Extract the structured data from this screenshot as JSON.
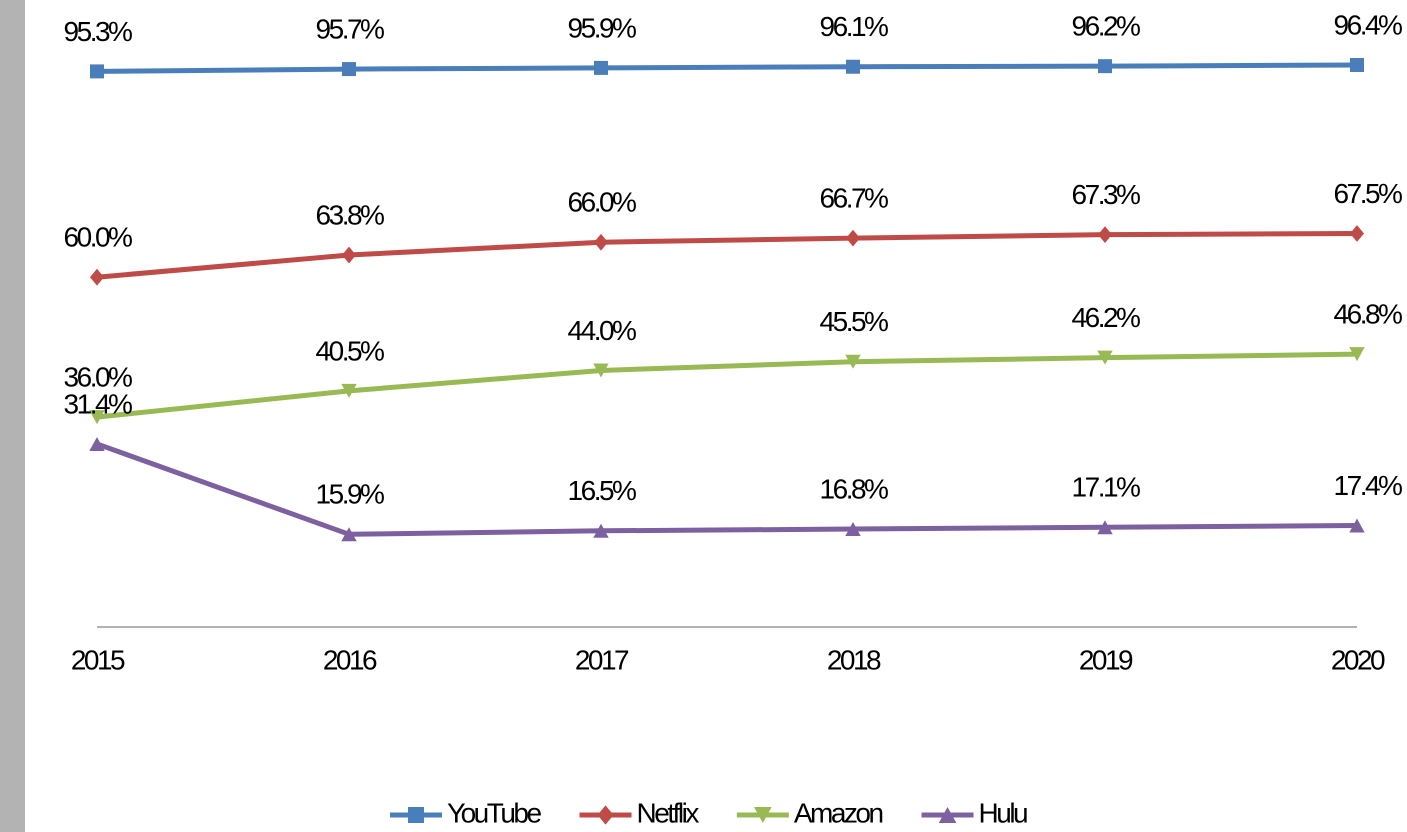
{
  "chart_data": {
    "type": "line",
    "categories": [
      "2015",
      "2016",
      "2017",
      "2018",
      "2019",
      "2020"
    ],
    "ylim": [
      0,
      100
    ],
    "legend": "bottom",
    "series": [
      {
        "name": "YouTube",
        "color": "#4a7ebb",
        "marker": "square",
        "values": [
          95.3,
          95.7,
          95.9,
          96.1,
          96.2,
          96.4
        ],
        "value_labels": [
          "95.3%",
          "95.7%",
          "95.9%",
          "96.1%",
          "96.2%",
          "96.4%"
        ]
      },
      {
        "name": "Netflix",
        "color": "#be4b48",
        "marker": "diamond",
        "values": [
          60.0,
          63.8,
          66.0,
          66.7,
          67.3,
          67.5
        ],
        "value_labels": [
          "60.0%",
          "63.8%",
          "66.0%",
          "66.7%",
          "67.3%",
          "67.5%"
        ]
      },
      {
        "name": "Amazon",
        "color": "#98b954",
        "marker": "triangle-down",
        "values": [
          36.0,
          40.5,
          44.0,
          45.5,
          46.2,
          46.8
        ],
        "value_labels": [
          "36.0%",
          "40.5%",
          "44.0%",
          "45.5%",
          "46.2%",
          "46.8%"
        ]
      },
      {
        "name": "Hulu",
        "color": "#7d60a0",
        "marker": "triangle-up",
        "values": [
          31.4,
          15.9,
          16.5,
          16.8,
          17.1,
          17.4
        ],
        "value_labels": [
          "31.4%",
          "15.9%",
          "16.5%",
          "16.8%",
          "17.1%",
          "17.4%"
        ]
      }
    ]
  }
}
